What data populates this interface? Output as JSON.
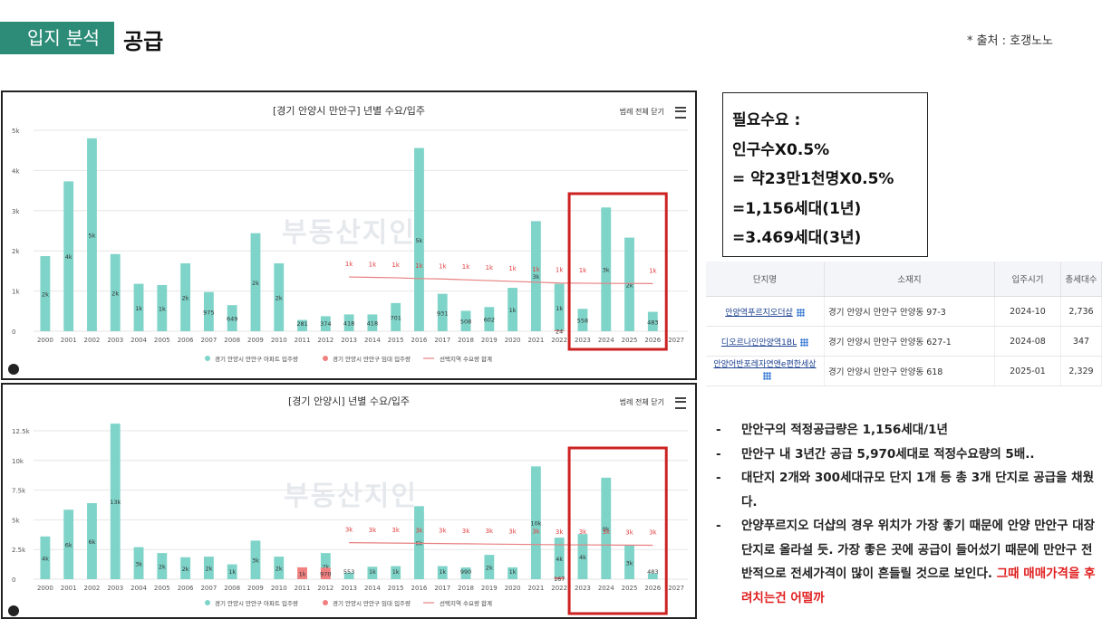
{
  "header": {
    "tag": "입지 분석",
    "title": "공급",
    "source": "* 출처 : 호갱노노"
  },
  "need_box": {
    "lines": [
      "필요수요 :",
      "인구수X0.5%",
      "=  약23만1천명X0.5%",
      "=1,156세대(1년)",
      "=3.469세대(3년)"
    ]
  },
  "table": {
    "headers": [
      "단지명",
      "소재지",
      "입주시기",
      "총세대수"
    ],
    "rows": [
      {
        "name": "안양역푸르지오더샵",
        "location": "경기 안양시 만안구 안양동 97-3",
        "date": "2024-10",
        "units": "2,736"
      },
      {
        "name": "디오르나인안양역1BL",
        "location": "경기 안양시 만안구 안양동 627-1",
        "date": "2024-08",
        "units": "347"
      },
      {
        "name": "안양어반포레자연앤e편한세상",
        "location": "경기 안양시 만안구 안양동 618",
        "date": "2025-01",
        "units": "2,329"
      }
    ]
  },
  "bullets": [
    {
      "text": "만안구의 적정공급량은 1,156세대/1년",
      "red": ""
    },
    {
      "text": "만안구 내 3년간 공급 5,970세대로 적정수요량의 5배..",
      "red": ""
    },
    {
      "text": "대단지 2개와 300세대규모 단지 1개 등 총 3개 단지로 공급을 채웠다.",
      "red": ""
    },
    {
      "text": "안양푸르지오 더샵의 경우 위치가 가장 좋기 때문에 안양 만안구 대장단지로 올라설 듯. 가장 좋은 곳에 공급이 들어섰기 때문에 만안구 전반적으로 전세가격이 많이 흔들릴 것으로 보인다. ",
      "red": "그때 매매가격을 후려치는건 어떨까"
    }
  ],
  "chart_ui": {
    "legend_toggle": "범례 전체 닫기",
    "watermark": "부동산지인"
  },
  "chart_data": [
    {
      "type": "bar",
      "title": "[경기 안양시 만안구] 년별 수요/입주",
      "categories": [
        "2000",
        "2001",
        "2002",
        "2003",
        "2004",
        "2005",
        "2006",
        "2007",
        "2008",
        "2009",
        "2010",
        "2011",
        "2012",
        "2013",
        "2014",
        "2015",
        "2016",
        "2017",
        "2018",
        "2019",
        "2020",
        "2021",
        "2022",
        "2023",
        "2024",
        "2025",
        "2026",
        "2027"
      ],
      "ylim": [
        0,
        5000
      ],
      "yticks": [
        0,
        1000,
        2000,
        3000,
        4000,
        5000
      ],
      "ytick_labels": [
        "0",
        "1k",
        "2k",
        "3k",
        "4k",
        "5k"
      ],
      "series": [
        {
          "name": "경기 안양시 만안구 아파트 입주량",
          "color": "#7fd4c9",
          "values": [
            1870,
            3730,
            4800,
            1920,
            1180,
            1150,
            1690,
            975,
            649,
            2440,
            1690,
            281,
            374,
            418,
            418,
            701,
            4560,
            931,
            508,
            602,
            1080,
            2740,
            1180,
            558,
            3080,
            2330,
            483,
            0
          ],
          "labels": [
            "2k",
            "4k",
            "5k",
            "2k",
            "1k",
            "1k",
            "2k",
            "975",
            "649",
            "2k",
            "2k",
            "281",
            "374",
            "418",
            "418",
            "701",
            "5k",
            "931",
            "508",
            "602",
            "1k",
            "3k",
            "1k",
            "558",
            "3k",
            "2k",
            "483",
            ""
          ]
        },
        {
          "name": "경기 안양시 만안구 임대 입주량",
          "color": "#f08080",
          "values": [
            0,
            0,
            0,
            0,
            0,
            0,
            0,
            0,
            0,
            0,
            0,
            0,
            0,
            0,
            0,
            0,
            0,
            0,
            0,
            0,
            0,
            0,
            24,
            0,
            0,
            0,
            0,
            0
          ],
          "labels": [
            "",
            "",
            "",
            "",
            "",
            "",
            "",
            "",
            "",
            "",
            "",
            "",
            "",
            "",
            "",
            "",
            "",
            "",
            "",
            "",
            "",
            "",
            "24",
            "",
            "",
            "",
            "",
            ""
          ]
        },
        {
          "name": "선택지역 수요량 합계",
          "color": "#e88080",
          "kind": "line",
          "x": [
            "2013",
            "2014",
            "2015",
            "2016",
            "2017",
            "2018",
            "2019",
            "2020",
            "2021",
            "2022",
            "2023",
            "2024",
            "2025",
            "2026"
          ],
          "values": [
            1350,
            1340,
            1330,
            1310,
            1300,
            1280,
            1260,
            1240,
            1220,
            1200,
            1195,
            1190,
            1190,
            1185
          ],
          "labels": [
            "1k",
            "1k",
            "1k",
            "1k",
            "1k",
            "1k",
            "1k",
            "1k",
            "1k",
            "1k",
            "1k",
            "",
            "",
            "1k"
          ]
        }
      ],
      "highlight": [
        "2023",
        "2026"
      ]
    },
    {
      "type": "bar",
      "title": "[경기 안양시] 년별 수요/입주",
      "categories": [
        "2000",
        "2001",
        "2002",
        "2003",
        "2004",
        "2005",
        "2006",
        "2007",
        "2008",
        "2009",
        "2010",
        "2011",
        "2012",
        "2013",
        "2014",
        "2015",
        "2016",
        "2017",
        "2018",
        "2019",
        "2020",
        "2021",
        "2022",
        "2023",
        "2024",
        "2025",
        "2026",
        "2027"
      ],
      "ylim": [
        0,
        12500
      ],
      "yticks": [
        0,
        2500,
        5000,
        7500,
        10000,
        12500
      ],
      "ytick_labels": [
        "0",
        "2.5k",
        "5k",
        "7.5k",
        "10k",
        "12.5k"
      ],
      "series": [
        {
          "name": "경기 안양시 만안구 아파트 입주량",
          "color": "#7fd4c9",
          "values": [
            3600,
            5850,
            6400,
            13100,
            2700,
            2200,
            1850,
            1900,
            1250,
            3250,
            1900,
            300,
            2200,
            553,
            1050,
            1100,
            6150,
            1100,
            990,
            2050,
            1000,
            9500,
            3500,
            3800,
            8550,
            2850,
            483,
            0
          ],
          "labels": [
            "4k",
            "6k",
            "6k",
            "13k",
            "3k",
            "2k",
            "2k",
            "2k",
            "1k",
            "3k",
            "2k",
            "",
            "2k",
            "553",
            "1k",
            "1k",
            "6k",
            "1k",
            "990",
            "2k",
            "1k",
            "10k",
            "4k",
            "4k",
            "9k",
            "3k",
            "483",
            ""
          ]
        },
        {
          "name": "경기 안양시 만안구 임대 입주량",
          "color": "#f08080",
          "values": [
            0,
            0,
            0,
            0,
            0,
            0,
            0,
            0,
            0,
            0,
            0,
            1000,
            970,
            0,
            0,
            0,
            0,
            0,
            0,
            0,
            0,
            0,
            167,
            0,
            0,
            0,
            0,
            0
          ],
          "labels": [
            "",
            "",
            "",
            "",
            "",
            "",
            "",
            "",
            "",
            "",
            "",
            "1k",
            "970",
            "",
            "",
            "",
            "",
            "",
            "",
            "",
            "",
            "",
            "167",
            "",
            "",
            "",
            "",
            ""
          ]
        },
        {
          "name": "선택지역 수요량 합계",
          "color": "#e88080",
          "kind": "line",
          "x": [
            "2013",
            "2014",
            "2015",
            "2016",
            "2017",
            "2018",
            "2019",
            "2020",
            "2021",
            "2022",
            "2023",
            "2024",
            "2025",
            "2026"
          ],
          "values": [
            3080,
            3060,
            3040,
            3020,
            3000,
            2980,
            2960,
            2940,
            2920,
            2900,
            2890,
            2880,
            2870,
            2860
          ],
          "labels": [
            "3k",
            "3k",
            "3k",
            "3k",
            "3k",
            "3k",
            "3k",
            "3k",
            "3k",
            "3k",
            "3k",
            "3k",
            "3k",
            "3k"
          ]
        }
      ],
      "highlight": [
        "2023",
        "2026"
      ]
    }
  ]
}
